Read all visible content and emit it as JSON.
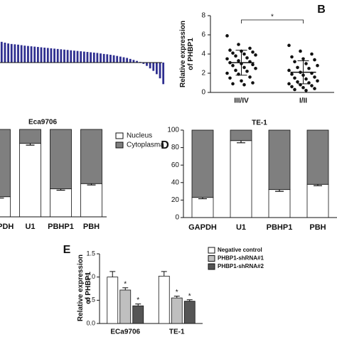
{
  "chart_data": [
    {
      "type": "bar",
      "color": "#2e2e8f",
      "ylim": [
        -1.5,
        1.5
      ],
      "values": [
        1.25,
        1.2,
        1.15,
        1.12,
        1.1,
        1.08,
        1.05,
        1.02,
        1.0,
        0.98,
        0.96,
        0.94,
        0.92,
        0.9,
        0.88,
        0.86,
        0.84,
        0.82,
        0.8,
        0.78,
        0.76,
        0.74,
        0.72,
        0.7,
        0.68,
        0.66,
        0.64,
        0.62,
        0.6,
        0.58,
        0.55,
        0.52,
        0.5,
        0.47,
        0.44,
        0.4,
        0.36,
        0.32,
        0.28,
        0.22,
        0.16,
        0.1,
        0.04,
        -0.08,
        -0.2,
        -0.35,
        -0.5,
        -0.7,
        -0.95,
        -1.3
      ]
    },
    {
      "type": "scatter",
      "panel": "B",
      "ylabel": "Relative expression\nof PHBP1",
      "annotation": "*",
      "categories": [
        "III/IV",
        "I/II"
      ],
      "ylim": [
        0,
        8
      ],
      "yticks": [
        0,
        2,
        4,
        6,
        8
      ],
      "color": "#111111",
      "values": [
        [
          5.9,
          5.0,
          4.6,
          4.4,
          4.3,
          4.2,
          4.1,
          4.0,
          3.9,
          3.8,
          3.6,
          3.5,
          3.3,
          3.2,
          3.1,
          3.0,
          2.9,
          2.8,
          2.6,
          2.5,
          2.3,
          2.2,
          2.0,
          1.9,
          1.6,
          1.5,
          1.2,
          1.0,
          0.9,
          0.8
        ],
        [
          4.9,
          4.3,
          4.0,
          3.7,
          3.5,
          3.4,
          3.2,
          3.0,
          2.8,
          2.6,
          2.5,
          2.3,
          2.1,
          2.0,
          1.9,
          1.8,
          1.6,
          1.5,
          1.4,
          1.2,
          1.1,
          1.0,
          0.9,
          0.8,
          0.7,
          0.6,
          0.5,
          0.4,
          0.3,
          0.2
        ]
      ],
      "means": [
        3.1,
        2.1
      ],
      "sd": [
        1.3,
        1.2
      ]
    },
    {
      "type": "stacked_bar",
      "title": "Eca9706",
      "categories": [
        "GAPDH",
        "U1",
        "PBHP1",
        "PBH"
      ],
      "ylim": [
        0,
        100
      ],
      "series": [
        {
          "name": "Nucleus",
          "color": "#ffffff",
          "values": [
            23,
            84,
            32,
            38
          ],
          "errors": [
            1.5,
            2,
            1.5,
            1.5
          ]
        },
        {
          "name": "Cytoplasma",
          "color": "#7f7f7f",
          "values": [
            77,
            16,
            68,
            62
          ]
        }
      ]
    },
    {
      "type": "stacked_bar",
      "panel": "D",
      "title": "TE-1",
      "categories": [
        "GAPDH",
        "U1",
        "PBHP1",
        "PBH"
      ],
      "ylim": [
        0,
        100
      ],
      "yticks": [
        0,
        20,
        40,
        60,
        80,
        100
      ],
      "series": [
        {
          "name": "Nucleus",
          "color": "#ffffff",
          "values": [
            23,
            88,
            32,
            38
          ],
          "errors": [
            1.5,
            2.5,
            2,
            1.5
          ]
        },
        {
          "name": "Cytoplasma",
          "color": "#7f7f7f",
          "values": [
            77,
            12,
            68,
            62
          ]
        }
      ]
    },
    {
      "type": "grouped_bar",
      "panel": "E",
      "ylabel": "Relative expression\nof PHBP1",
      "categories": [
        "ECa9706",
        "TE-1"
      ],
      "ylim": [
        0,
        1.5
      ],
      "yticks": [
        {
          "value": 0,
          "label": "0.0"
        },
        {
          "value": 0.5,
          "label": "0.5"
        },
        {
          "value": 1,
          "label": "1.0"
        },
        {
          "value": 1.5,
          "label": "1.5"
        }
      ],
      "annotations": [
        "*",
        "*",
        "*",
        "*"
      ],
      "series": [
        {
          "name": "Negative control",
          "color": "#ffffff",
          "values": [
            1.0,
            1.02
          ],
          "errors": [
            0.12,
            0.1
          ]
        },
        {
          "name": "PHBP1-shRNA#1",
          "color": "#bfbfbf",
          "values": [
            0.72,
            0.55
          ],
          "errors": [
            0.05,
            0.04
          ]
        },
        {
          "name": "PHBP1-shRNA#2",
          "color": "#555555",
          "values": [
            0.38,
            0.48
          ],
          "errors": [
            0.04,
            0.03
          ]
        }
      ]
    }
  ]
}
